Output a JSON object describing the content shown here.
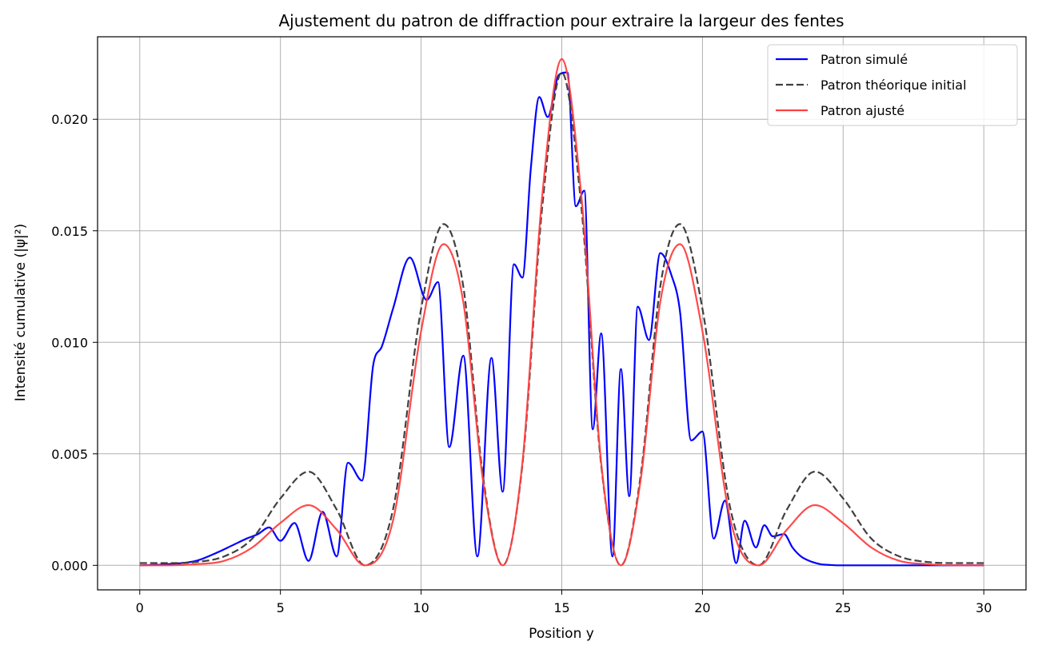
{
  "chart_data": {
    "type": "line",
    "title": "Ajustement du patron de diffraction pour extraire la largeur des fentes",
    "xlabel": "Position y",
    "ylabel": "Intensité cumulative (|ψ|²)",
    "xlim": [
      -1.5,
      31.5
    ],
    "ylim": [
      -0.0011,
      0.0237
    ],
    "xticks": [
      0,
      5,
      10,
      15,
      20,
      25,
      30
    ],
    "xtick_labels": [
      "0",
      "5",
      "10",
      "15",
      "20",
      "25",
      "30"
    ],
    "yticks": [
      0.0,
      0.005,
      0.01,
      0.015,
      0.02
    ],
    "ytick_labels": [
      "0.000",
      "0.005",
      "0.010",
      "0.015",
      "0.020"
    ],
    "grid": true,
    "legend_position": "top-right",
    "series": [
      {
        "name": "Patron simulé",
        "color": "#0000ff",
        "style": "solid",
        "x": [
          0,
          1.0,
          2.0,
          2.8,
          3.3,
          3.8,
          4.2,
          4.6,
          5.0,
          5.5,
          6.0,
          6.5,
          7.0,
          7.4,
          7.9,
          8.3,
          8.6,
          9.0,
          9.6,
          10.2,
          10.6,
          11.0,
          11.5,
          12.0,
          12.5,
          12.9,
          13.3,
          13.6,
          13.9,
          14.2,
          14.5,
          14.9,
          15.2,
          15.5,
          15.8,
          16.1,
          16.4,
          16.8,
          17.1,
          17.4,
          17.7,
          18.1,
          18.5,
          18.9,
          19.2,
          19.6,
          20.0,
          20.4,
          20.8,
          21.2,
          21.5,
          21.9,
          22.2,
          22.5,
          22.9,
          23.2,
          23.5,
          23.8,
          24.2,
          24.5,
          24.8,
          25.2,
          25.6,
          26.0,
          26.5,
          27.0,
          27.5,
          28.0,
          28.5,
          29.0,
          30.0
        ],
        "y": [
          0.0,
          5e-05,
          0.0002,
          0.0006,
          0.0009,
          0.0012,
          0.0014,
          0.0017,
          0.0011,
          0.0019,
          0.0002,
          0.0024,
          0.0004,
          0.0046,
          0.0038,
          0.009,
          0.0098,
          0.0115,
          0.0138,
          0.0119,
          0.0127,
          0.0053,
          0.0094,
          0.0004,
          0.0093,
          0.0033,
          0.0135,
          0.0129,
          0.0178,
          0.021,
          0.0201,
          0.022,
          0.0221,
          0.0161,
          0.0168,
          0.0061,
          0.0104,
          0.0004,
          0.0088,
          0.0031,
          0.0116,
          0.0101,
          0.014,
          0.013,
          0.0114,
          0.0056,
          0.006,
          0.0012,
          0.0029,
          0.0001,
          0.002,
          0.0008,
          0.0018,
          0.0013,
          0.0014,
          0.0008,
          0.0004,
          0.0002,
          5e-05,
          2e-05,
          0.0,
          0.0,
          0.0,
          0.0,
          0.0,
          0.0,
          0.0,
          0.0,
          0.0,
          0.0,
          0.0
        ]
      },
      {
        "name": "Patron théorique initial",
        "color": "#404040",
        "style": "dashed",
        "x": [
          0,
          1.0,
          2.0,
          3.0,
          4.0,
          5.0,
          6.0,
          7.0,
          8.0,
          9.0,
          10.0,
          10.8,
          11.5,
          12.2,
          12.9,
          13.6,
          14.3,
          15.0,
          15.7,
          16.4,
          17.1,
          17.8,
          18.5,
          19.2,
          20.0,
          21.0,
          22.0,
          23.0,
          24.0,
          25.0,
          26.0,
          27.0,
          28.0,
          29.0,
          30.0
        ],
        "y": [
          0.0001,
          0.0001,
          0.00015,
          0.0004,
          0.0012,
          0.003,
          0.0042,
          0.0025,
          0.0,
          0.0025,
          0.0115,
          0.0153,
          0.0125,
          0.004,
          0.0,
          0.0045,
          0.016,
          0.0221,
          0.016,
          0.0045,
          0.0,
          0.004,
          0.0125,
          0.0153,
          0.0115,
          0.0025,
          0.0,
          0.0025,
          0.0042,
          0.003,
          0.0012,
          0.0004,
          0.00015,
          0.0001,
          0.0001
        ]
      },
      {
        "name": "Patron ajusté",
        "color": "#ff4040",
        "style": "solid",
        "x": [
          0,
          1.0,
          2.0,
          3.0,
          4.0,
          5.0,
          6.0,
          7.0,
          8.0,
          9.0,
          10.0,
          10.8,
          11.5,
          12.2,
          12.9,
          13.6,
          14.3,
          15.0,
          15.7,
          16.4,
          17.1,
          17.8,
          18.5,
          19.2,
          20.0,
          21.0,
          22.0,
          23.0,
          24.0,
          25.0,
          26.0,
          27.0,
          28.0,
          29.0,
          30.0
        ],
        "y": [
          0.0,
          0.0,
          5e-05,
          0.0002,
          0.0008,
          0.0019,
          0.0027,
          0.0016,
          0.0,
          0.002,
          0.0105,
          0.0144,
          0.0118,
          0.0038,
          0.0,
          0.0046,
          0.0165,
          0.0227,
          0.0165,
          0.0046,
          0.0,
          0.0038,
          0.0118,
          0.0144,
          0.0105,
          0.002,
          0.0,
          0.0016,
          0.0027,
          0.0019,
          0.0008,
          0.0002,
          5e-05,
          0.0,
          0.0
        ]
      }
    ]
  }
}
